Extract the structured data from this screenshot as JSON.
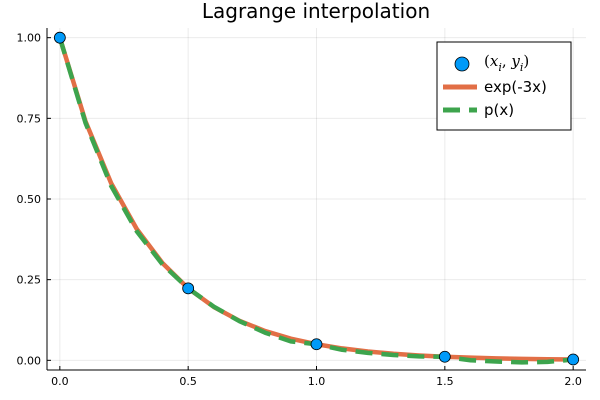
{
  "chart_data": {
    "type": "line",
    "title": "Lagrange interpolation",
    "xlabel": "",
    "ylabel": "",
    "xlim": [
      -0.05,
      2.05
    ],
    "ylim": [
      -0.03,
      1.03
    ],
    "x_ticks": [
      0.0,
      0.5,
      1.0,
      1.5,
      2.0
    ],
    "x_tick_labels": [
      "0.0",
      "0.5",
      "1.0",
      "1.5",
      "2.0"
    ],
    "y_ticks": [
      0.0,
      0.25,
      0.5,
      0.75,
      1.0
    ],
    "y_tick_labels": [
      "0.00",
      "0.25",
      "0.50",
      "0.75",
      "1.00"
    ],
    "grid": true,
    "legend_position": "top-right",
    "series": [
      {
        "name": "(x_i, y_i)",
        "kind": "scatter",
        "color": "#009af9",
        "x": [
          0.0,
          0.5,
          1.0,
          1.5,
          2.0
        ],
        "y": [
          1.0,
          0.2231,
          0.0498,
          0.0111,
          0.0025
        ]
      },
      {
        "name": "exp(-3x)",
        "kind": "line",
        "color": "#e26f46",
        "style": "solid",
        "x": [
          0.0,
          0.1,
          0.2,
          0.3,
          0.4,
          0.5,
          0.6,
          0.7,
          0.8,
          0.9,
          1.0,
          1.1,
          1.2,
          1.3,
          1.4,
          1.5,
          1.6,
          1.7,
          1.8,
          1.9,
          2.0
        ],
        "y": [
          1.0,
          0.7408,
          0.5488,
          0.4066,
          0.3012,
          0.2231,
          0.1653,
          0.1225,
          0.0907,
          0.0672,
          0.0498,
          0.0369,
          0.0273,
          0.0202,
          0.015,
          0.0111,
          0.0082,
          0.0061,
          0.0045,
          0.0033,
          0.0025
        ]
      },
      {
        "name": "p(x)",
        "kind": "line",
        "color": "#3da44d",
        "style": "dashed",
        "x": [
          0.0,
          0.1,
          0.2,
          0.3,
          0.4,
          0.5,
          0.6,
          0.7,
          0.8,
          0.9,
          1.0,
          1.1,
          1.2,
          1.3,
          1.4,
          1.5,
          1.6,
          1.7,
          1.8,
          1.9,
          2.0
        ],
        "y": [
          1.0,
          0.7359,
          0.5408,
          0.3997,
          0.2974,
          0.2231,
          0.1662,
          0.1213,
          0.0855,
          0.0587,
          0.0498,
          0.0327,
          0.0232,
          0.0164,
          0.0121,
          0.0111,
          0.0002,
          -0.0038,
          -0.0065,
          -0.0049,
          0.0025
        ]
      }
    ]
  }
}
